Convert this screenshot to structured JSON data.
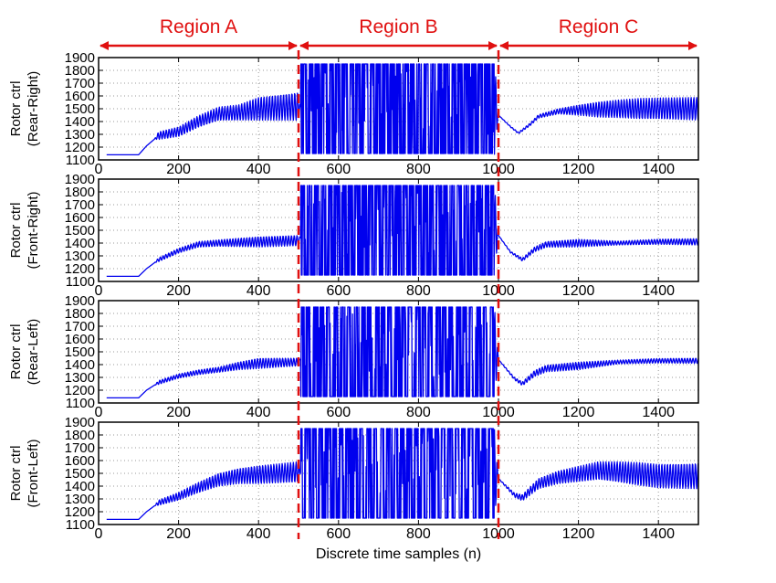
{
  "regions": [
    {
      "label": "Region A",
      "start": 0,
      "end": 500
    },
    {
      "label": "Region B",
      "start": 500,
      "end": 1000
    },
    {
      "label": "Region C",
      "start": 1000,
      "end": 1500
    }
  ],
  "colors": {
    "series": "#0000ee",
    "region_marker": "#e01010",
    "grid": "#9a9a9a",
    "axes": "#000000"
  },
  "chart_data": [
    {
      "type": "line",
      "ylabel": [
        "Rotor ctrl",
        "(Rear-Right)"
      ],
      "xlim": [
        0,
        1500
      ],
      "ylim": [
        1100,
        1900
      ],
      "xticks": [
        0,
        200,
        400,
        600,
        800,
        1000,
        1200,
        1400
      ],
      "yticks": [
        1100,
        1200,
        1300,
        1400,
        1500,
        1600,
        1700,
        1800,
        1900
      ],
      "grid": true,
      "series": [
        {
          "values": [
            [
              20,
              1140
            ],
            [
              100,
              1140
            ],
            [
              120,
              1210
            ],
            [
              150,
              1290
            ],
            [
              200,
              1320
            ],
            [
              250,
              1400
            ],
            [
              300,
              1460
            ],
            [
              350,
              1470
            ],
            [
              400,
              1500
            ],
            [
              450,
              1510
            ],
            [
              500,
              1520
            ],
            [
              520,
              1500
            ],
            [
              600,
              1500
            ],
            [
              700,
              1500
            ],
            [
              800,
              1500
            ],
            [
              900,
              1500
            ],
            [
              990,
              1500
            ],
            [
              1000,
              1450
            ],
            [
              1030,
              1360
            ],
            [
              1050,
              1310
            ],
            [
              1080,
              1380
            ],
            [
              1100,
              1440
            ],
            [
              1150,
              1480
            ],
            [
              1200,
              1490
            ],
            [
              1300,
              1500
            ],
            [
              1400,
              1500
            ],
            [
              1500,
              1500
            ]
          ],
          "oscillation": [
            [
              20,
              0
            ],
            [
              140,
              0
            ],
            [
              150,
              30
            ],
            [
              350,
              60
            ],
            [
              400,
              90
            ],
            [
              500,
              110
            ],
            [
              505,
              0
            ],
            [
              515,
              380
            ],
            [
              990,
              380
            ],
            [
              1000,
              0
            ],
            [
              1150,
              20
            ],
            [
              1250,
              60
            ],
            [
              1350,
              80
            ],
            [
              1500,
              90
            ]
          ]
        }
      ]
    },
    {
      "type": "line",
      "ylabel": [
        "Rotor ctrl",
        "(Front-Right)"
      ],
      "xlim": [
        0,
        1500
      ],
      "ylim": [
        1100,
        1900
      ],
      "xticks": [
        0,
        200,
        400,
        600,
        800,
        1000,
        1200,
        1400
      ],
      "yticks": [
        1100,
        1200,
        1300,
        1400,
        1500,
        1600,
        1700,
        1800,
        1900
      ],
      "grid": true,
      "series": [
        {
          "values": [
            [
              20,
              1140
            ],
            [
              100,
              1140
            ],
            [
              120,
              1200
            ],
            [
              150,
              1270
            ],
            [
              200,
              1340
            ],
            [
              250,
              1390
            ],
            [
              300,
              1400
            ],
            [
              400,
              1410
            ],
            [
              500,
              1420
            ],
            [
              520,
              1500
            ],
            [
              600,
              1500
            ],
            [
              700,
              1500
            ],
            [
              800,
              1500
            ],
            [
              900,
              1500
            ],
            [
              990,
              1500
            ],
            [
              1000,
              1460
            ],
            [
              1030,
              1330
            ],
            [
              1060,
              1270
            ],
            [
              1090,
              1350
            ],
            [
              1120,
              1390
            ],
            [
              1200,
              1400
            ],
            [
              1300,
              1400
            ],
            [
              1400,
              1410
            ],
            [
              1500,
              1410
            ]
          ],
          "oscillation": [
            [
              20,
              0
            ],
            [
              140,
              0
            ],
            [
              150,
              15
            ],
            [
              300,
              25
            ],
            [
              400,
              40
            ],
            [
              500,
              40
            ],
            [
              505,
              0
            ],
            [
              515,
              350
            ],
            [
              990,
              350
            ],
            [
              1000,
              0
            ],
            [
              1100,
              20
            ],
            [
              1200,
              30
            ],
            [
              1300,
              15
            ],
            [
              1500,
              25
            ]
          ]
        }
      ]
    },
    {
      "type": "line",
      "ylabel": [
        "Rotor ctrl",
        "(Rear-Left)"
      ],
      "xlim": [
        0,
        1500
      ],
      "ylim": [
        1100,
        1900
      ],
      "xticks": [
        0,
        200,
        400,
        600,
        800,
        1000,
        1200,
        1400
      ],
      "yticks": [
        1100,
        1200,
        1300,
        1400,
        1500,
        1600,
        1700,
        1800,
        1900
      ],
      "grid": true,
      "series": [
        {
          "values": [
            [
              20,
              1140
            ],
            [
              100,
              1140
            ],
            [
              120,
              1200
            ],
            [
              150,
              1260
            ],
            [
              200,
              1310
            ],
            [
              250,
              1340
            ],
            [
              300,
              1360
            ],
            [
              350,
              1390
            ],
            [
              400,
              1410
            ],
            [
              500,
              1420
            ],
            [
              520,
              1500
            ],
            [
              600,
              1500
            ],
            [
              700,
              1500
            ],
            [
              800,
              1500
            ],
            [
              900,
              1500
            ],
            [
              990,
              1500
            ],
            [
              1000,
              1440
            ],
            [
              1040,
              1290
            ],
            [
              1060,
              1250
            ],
            [
              1090,
              1330
            ],
            [
              1120,
              1370
            ],
            [
              1200,
              1390
            ],
            [
              1300,
              1420
            ],
            [
              1400,
              1430
            ],
            [
              1500,
              1430
            ]
          ],
          "oscillation": [
            [
              20,
              0
            ],
            [
              140,
              0
            ],
            [
              150,
              15
            ],
            [
              300,
              20
            ],
            [
              400,
              40
            ],
            [
              500,
              30
            ],
            [
              505,
              0
            ],
            [
              515,
              350
            ],
            [
              990,
              350
            ],
            [
              1000,
              0
            ],
            [
              1100,
              25
            ],
            [
              1200,
              30
            ],
            [
              1300,
              15
            ],
            [
              1500,
              20
            ]
          ]
        }
      ]
    },
    {
      "type": "line",
      "ylabel": [
        "Rotor ctrl",
        "(Front-Left)"
      ],
      "xlim": [
        0,
        1500
      ],
      "ylim": [
        1100,
        1900
      ],
      "xticks": [
        0,
        200,
        400,
        600,
        800,
        1000,
        1200,
        1400
      ],
      "yticks": [
        1100,
        1200,
        1300,
        1400,
        1500,
        1600,
        1700,
        1800,
        1900
      ],
      "grid": true,
      "xlabel": "Discrete time samples (n)",
      "series": [
        {
          "values": [
            [
              20,
              1140
            ],
            [
              100,
              1140
            ],
            [
              120,
              1200
            ],
            [
              150,
              1270
            ],
            [
              200,
              1320
            ],
            [
              250,
              1390
            ],
            [
              300,
              1450
            ],
            [
              350,
              1480
            ],
            [
              400,
              1490
            ],
            [
              500,
              1510
            ],
            [
              520,
              1500
            ],
            [
              600,
              1500
            ],
            [
              700,
              1500
            ],
            [
              800,
              1500
            ],
            [
              900,
              1500
            ],
            [
              990,
              1500
            ],
            [
              1000,
              1460
            ],
            [
              1040,
              1330
            ],
            [
              1060,
              1310
            ],
            [
              1100,
              1420
            ],
            [
              1150,
              1470
            ],
            [
              1250,
              1520
            ],
            [
              1300,
              1510
            ],
            [
              1400,
              1480
            ],
            [
              1500,
              1480
            ]
          ],
          "oscillation": [
            [
              20,
              0
            ],
            [
              140,
              0
            ],
            [
              150,
              20
            ],
            [
              300,
              50
            ],
            [
              400,
              70
            ],
            [
              500,
              80
            ],
            [
              505,
              0
            ],
            [
              515,
              350
            ],
            [
              990,
              350
            ],
            [
              1000,
              0
            ],
            [
              1100,
              40
            ],
            [
              1250,
              70
            ],
            [
              1350,
              90
            ],
            [
              1500,
              100
            ]
          ]
        }
      ]
    }
  ]
}
